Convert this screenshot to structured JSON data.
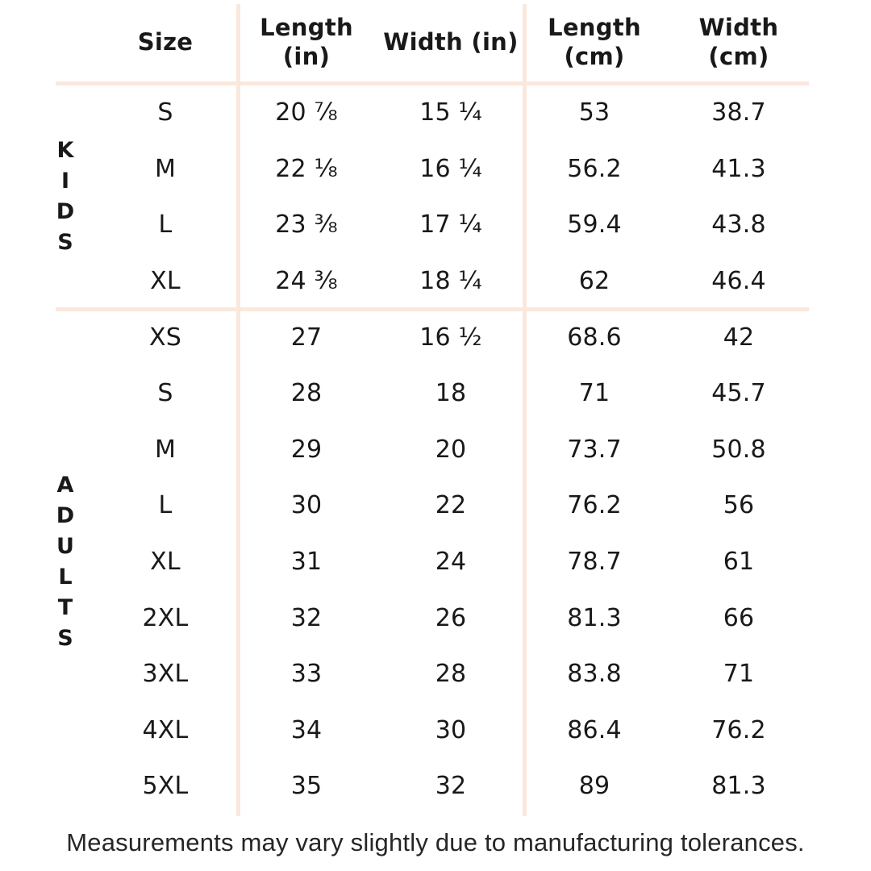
{
  "page": {
    "background_color": "#ffffff",
    "text_color": "#191919",
    "divider_color": "#fbe8dc"
  },
  "header": {
    "size": "Size",
    "length_in": "Length\n(in)",
    "width_in": "Width (in)",
    "length_cm": "Length\n(cm)",
    "width_cm": "Width\n(cm)"
  },
  "sections": {
    "kids": {
      "label": "KIDS",
      "rows": [
        {
          "size": "S",
          "length_in": "20 ⅞",
          "width_in": "15 ¼",
          "length_cm": "53",
          "width_cm": "38.7"
        },
        {
          "size": "M",
          "length_in": "22 ⅛",
          "width_in": "16 ¼",
          "length_cm": "56.2",
          "width_cm": "41.3"
        },
        {
          "size": "L",
          "length_in": "23 ⅜",
          "width_in": "17 ¼",
          "length_cm": "59.4",
          "width_cm": "43.8"
        },
        {
          "size": "XL",
          "length_in": "24 ⅜",
          "width_in": "18 ¼",
          "length_cm": "62",
          "width_cm": "46.4"
        }
      ]
    },
    "adults": {
      "label": "ADULTS",
      "rows": [
        {
          "size": "XS",
          "length_in": "27",
          "width_in": "16 ½",
          "length_cm": "68.6",
          "width_cm": "42"
        },
        {
          "size": "S",
          "length_in": "28",
          "width_in": "18",
          "length_cm": "71",
          "width_cm": "45.7"
        },
        {
          "size": "M",
          "length_in": "29",
          "width_in": "20",
          "length_cm": "73.7",
          "width_cm": "50.8"
        },
        {
          "size": "L",
          "length_in": "30",
          "width_in": "22",
          "length_cm": "76.2",
          "width_cm": "56"
        },
        {
          "size": "XL",
          "length_in": "31",
          "width_in": "24",
          "length_cm": "78.7",
          "width_cm": "61"
        },
        {
          "size": "2XL",
          "length_in": "32",
          "width_in": "26",
          "length_cm": "81.3",
          "width_cm": "66"
        },
        {
          "size": "3XL",
          "length_in": "33",
          "width_in": "28",
          "length_cm": "83.8",
          "width_cm": "71"
        },
        {
          "size": "4XL",
          "length_in": "34",
          "width_in": "30",
          "length_cm": "86.4",
          "width_cm": "76.2"
        },
        {
          "size": "5XL",
          "length_in": "35",
          "width_in": "32",
          "length_cm": "89",
          "width_cm": "81.3"
        }
      ]
    }
  },
  "footer": {
    "note": "Measurements may vary slightly due to manufacturing tolerances."
  }
}
